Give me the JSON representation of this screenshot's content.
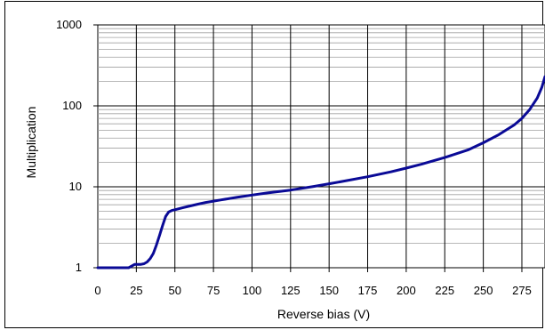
{
  "chart_data": {
    "type": "line",
    "title": "",
    "xlabel": "Reverse bias (V)",
    "ylabel": "Multiplication",
    "xlim": [
      0,
      290
    ],
    "ylim": [
      1,
      1000
    ],
    "y_scale": "log",
    "grid": true,
    "x_ticks": [
      0,
      25,
      50,
      75,
      100,
      125,
      150,
      175,
      200,
      225,
      250,
      275
    ],
    "y_ticks": [
      1,
      10,
      100,
      1000
    ],
    "line_color": "#0a0a96",
    "series": [
      {
        "name": "",
        "x": [
          0,
          10,
          20,
          22,
          24,
          26,
          28,
          30,
          32,
          34,
          36,
          38,
          40,
          42,
          44,
          46,
          48,
          50,
          55,
          60,
          65,
          70,
          80,
          90,
          100,
          110,
          125,
          140,
          150,
          160,
          175,
          190,
          200,
          210,
          225,
          240,
          250,
          260,
          270,
          275,
          280,
          285,
          288,
          290
        ],
        "y": [
          1.0,
          1.0,
          1.0,
          1.05,
          1.1,
          1.1,
          1.1,
          1.12,
          1.18,
          1.3,
          1.5,
          1.9,
          2.5,
          3.3,
          4.3,
          4.9,
          5.1,
          5.2,
          5.5,
          5.8,
          6.1,
          6.4,
          6.9,
          7.4,
          7.9,
          8.4,
          9.1,
          10.1,
          10.9,
          11.8,
          13.3,
          15.3,
          17.0,
          19.0,
          23.0,
          28.5,
          35.0,
          44.0,
          58.0,
          70.0,
          90.0,
          125.0,
          170.0,
          230.0
        ]
      }
    ]
  }
}
